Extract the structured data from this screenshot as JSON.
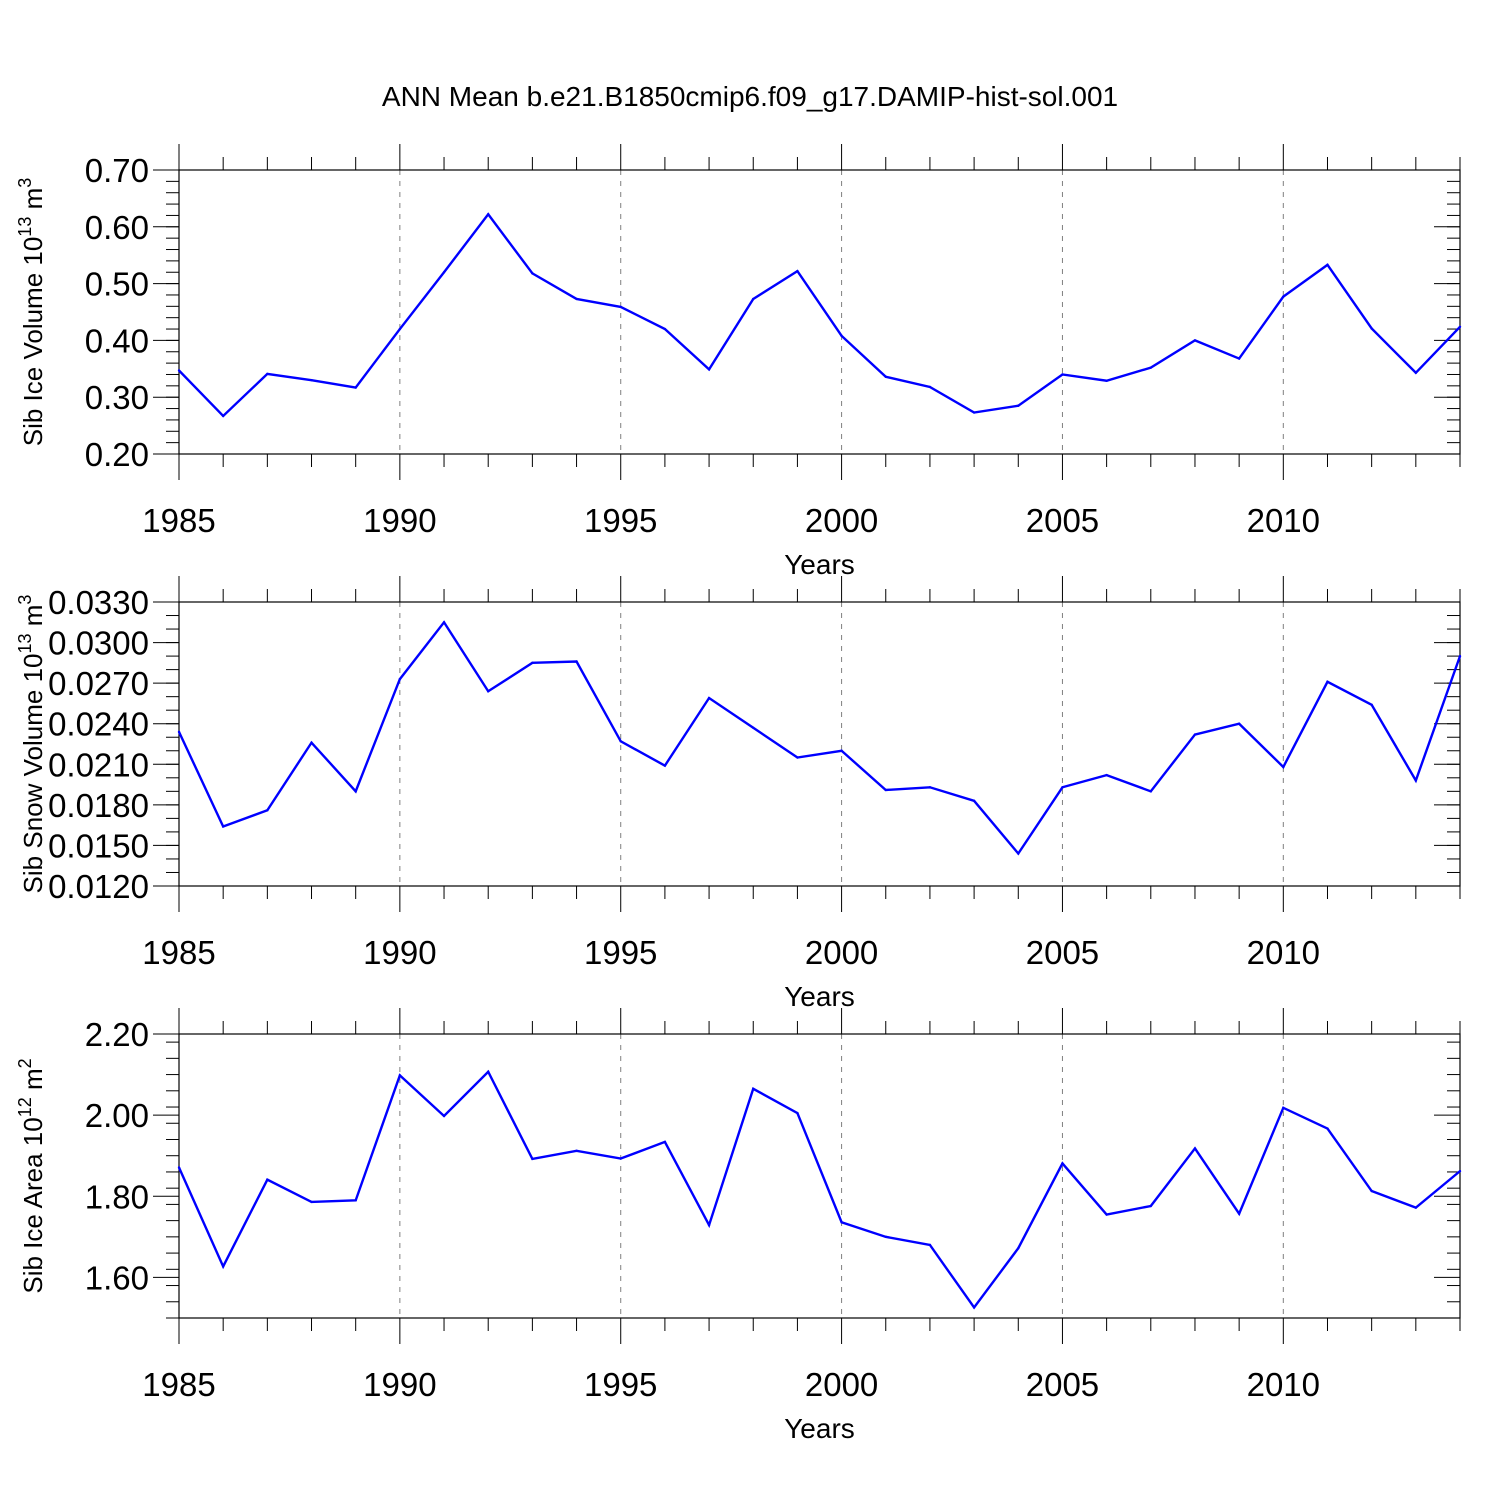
{
  "title": "ANN Mean b.e21.B1850cmip6.f09_g17.DAMIP-hist-sol.001",
  "colors": {
    "line": "#0000ff",
    "axis": "#000000",
    "grid": "#808080",
    "background": "#ffffff"
  },
  "chart_data": [
    {
      "type": "line",
      "ylabel": "Sib Ice Volume 10",
      "ylabel_exp": "13",
      "ylabel_unit": " m",
      "ylabel_unit_exp": "3",
      "xlabel": "Years",
      "xlim": [
        1985,
        2014
      ],
      "ylim": [
        0.2,
        0.7
      ],
      "xticks": [
        "1985",
        "1990",
        "1995",
        "2000",
        "2005",
        "2010"
      ],
      "yticks": [
        "0.20",
        "0.30",
        "0.40",
        "0.50",
        "0.60",
        "0.70"
      ],
      "x": [
        1985,
        1986,
        1987,
        1988,
        1989,
        1990,
        1991,
        1992,
        1993,
        1994,
        1995,
        1996,
        1997,
        1998,
        1999,
        2000,
        2001,
        2002,
        2003,
        2004,
        2005,
        2006,
        2007,
        2008,
        2009,
        2010,
        2011,
        2012,
        2013,
        2014
      ],
      "series": [
        {
          "name": "Sib Ice Volume",
          "values": [
            0.347,
            0.267,
            0.341,
            0.33,
            0.317,
            0.42,
            0.52,
            0.622,
            0.518,
            0.473,
            0.459,
            0.42,
            0.349,
            0.473,
            0.522,
            0.408,
            0.336,
            0.318,
            0.273,
            0.285,
            0.34,
            0.329,
            0.352,
            0.4,
            0.368,
            0.477,
            0.533,
            0.421,
            0.343,
            0.424
          ]
        }
      ]
    },
    {
      "type": "line",
      "ylabel": "Sib Snow Volume 10",
      "ylabel_exp": "13",
      "ylabel_unit": " m",
      "ylabel_unit_exp": "3",
      "xlabel": "Years",
      "xlim": [
        1985,
        2014
      ],
      "ylim": [
        0.012,
        0.033
      ],
      "xticks": [
        "1985",
        "1990",
        "1995",
        "2000",
        "2005",
        "2010"
      ],
      "yticks": [
        "0.0120",
        "0.0150",
        "0.0180",
        "0.0210",
        "0.0240",
        "0.0270",
        "0.0300",
        "0.0330"
      ],
      "x": [
        1985,
        1986,
        1987,
        1988,
        1989,
        1990,
        1991,
        1992,
        1993,
        1994,
        1995,
        1996,
        1997,
        1998,
        1999,
        2000,
        2001,
        2002,
        2003,
        2004,
        2005,
        2006,
        2007,
        2008,
        2009,
        2010,
        2011,
        2012,
        2013,
        2014
      ],
      "series": [
        {
          "name": "Sib Snow Volume",
          "values": [
            0.0234,
            0.0164,
            0.0176,
            0.0226,
            0.019,
            0.0273,
            0.0315,
            0.0264,
            0.0285,
            0.0286,
            0.0227,
            0.0209,
            0.0259,
            0.0237,
            0.0215,
            0.022,
            0.0191,
            0.0193,
            0.0183,
            0.0144,
            0.0193,
            0.0202,
            0.019,
            0.0232,
            0.024,
            0.0208,
            0.0271,
            0.0254,
            0.0198,
            0.029
          ]
        }
      ]
    },
    {
      "type": "line",
      "ylabel": "Sib Ice Area 10",
      "ylabel_exp": "12",
      "ylabel_unit": " m",
      "ylabel_unit_exp": "2",
      "xlabel": "Years",
      "xlim": [
        1985,
        2014
      ],
      "ylim": [
        1.5,
        2.2
      ],
      "xticks": [
        "1985",
        "1990",
        "1995",
        "2000",
        "2005",
        "2010"
      ],
      "yticks": [
        "1.60",
        "1.80",
        "2.00",
        "2.20"
      ],
      "x": [
        1985,
        1986,
        1987,
        1988,
        1989,
        1990,
        1991,
        1992,
        1993,
        1994,
        1995,
        1996,
        1997,
        1998,
        1999,
        2000,
        2001,
        2002,
        2003,
        2004,
        2005,
        2006,
        2007,
        2008,
        2009,
        2010,
        2011,
        2012,
        2013,
        2014
      ],
      "series": [
        {
          "name": "Sib Ice Area",
          "values": [
            1.871,
            1.627,
            1.841,
            1.786,
            1.79,
            2.098,
            1.998,
            2.107,
            1.892,
            1.912,
            1.893,
            1.934,
            1.729,
            2.065,
            2.005,
            1.736,
            1.7,
            1.68,
            1.526,
            1.672,
            1.881,
            1.755,
            1.776,
            1.918,
            1.757,
            2.018,
            1.967,
            1.813,
            1.772,
            1.862
          ]
        }
      ]
    }
  ]
}
